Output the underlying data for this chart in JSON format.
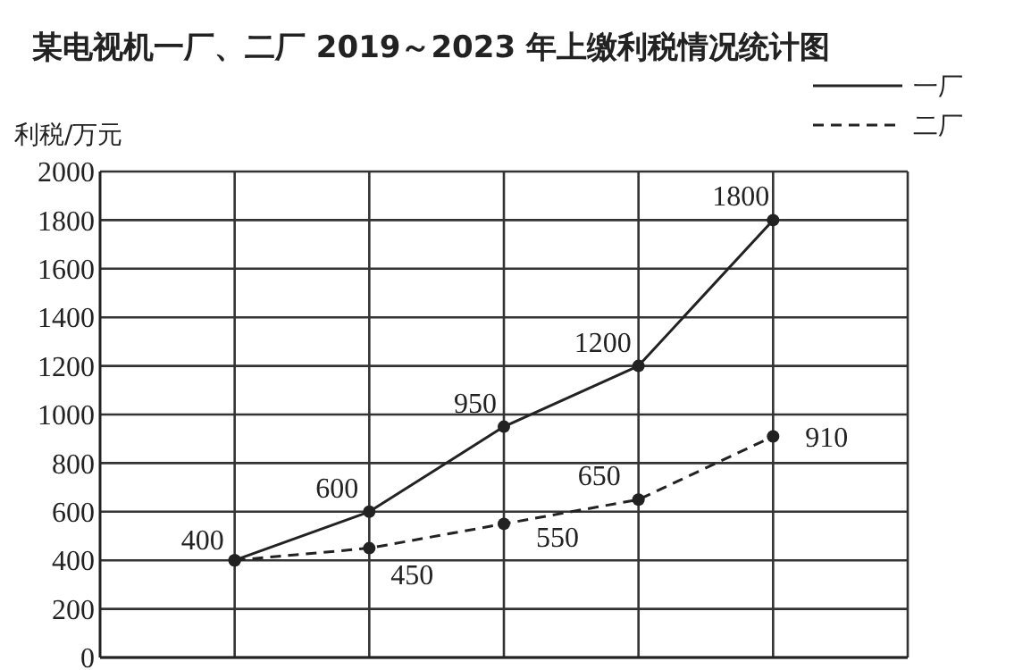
{
  "chart_data": {
    "type": "line",
    "title": "某电视机一厂、二厂 2019～2023 年上缴利税情况统计图",
    "ylabel": "利税/万元",
    "categories": [
      null,
      null,
      null,
      null,
      null
    ],
    "series": [
      {
        "name": "一厂",
        "color": "#222222",
        "values": [
          400,
          600,
          950,
          1200,
          1800
        ],
        "value_labels": [
          "400",
          "600",
          "950",
          "1200",
          "1800"
        ],
        "line_style": "solid"
      },
      {
        "name": "二厂",
        "color": "#222222",
        "values": [
          400,
          450,
          550,
          650,
          910
        ],
        "value_labels": [
          null,
          "450",
          "550",
          "650",
          "910"
        ],
        "line_style": "dashed"
      }
    ],
    "ylim": [
      0,
      2000
    ],
    "yticks": [
      0,
      200,
      400,
      600,
      800,
      1000,
      1200,
      1400,
      1600,
      1800,
      2000
    ],
    "grid": true,
    "legend": "top right",
    "marker": "circle"
  }
}
